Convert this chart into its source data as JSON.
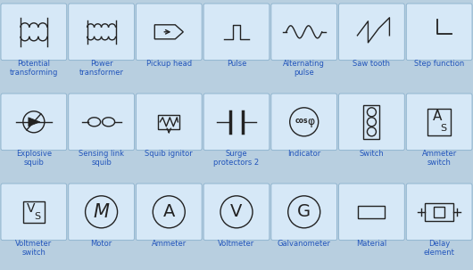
{
  "bg_color": "#b8cfe0",
  "cell_bg": "#d6e8f7",
  "cell_border": "#8ab0cc",
  "text_color": "#2255bb",
  "symbol_color": "#222222",
  "rows": 3,
  "cols": 7,
  "fig_w": 5.3,
  "fig_h": 3.03,
  "labels": [
    [
      "Potential\ntransforming",
      "Power\ntransformer",
      "Pickup head",
      "Pulse",
      "Alternating\npulse",
      "Saw tooth",
      "Step function"
    ],
    [
      "Explosive\nsquib",
      "Sensing link\nsquib",
      "Squib ignitor",
      "Surge\nprotectors 2",
      "Indicator",
      "Switch",
      "Ammeter\nswitch"
    ],
    [
      "Voltmeter\nswitch",
      "Motor",
      "Ammeter",
      "Voltmeter",
      "Galvanometer",
      "Material",
      "Delay\nelement"
    ]
  ]
}
